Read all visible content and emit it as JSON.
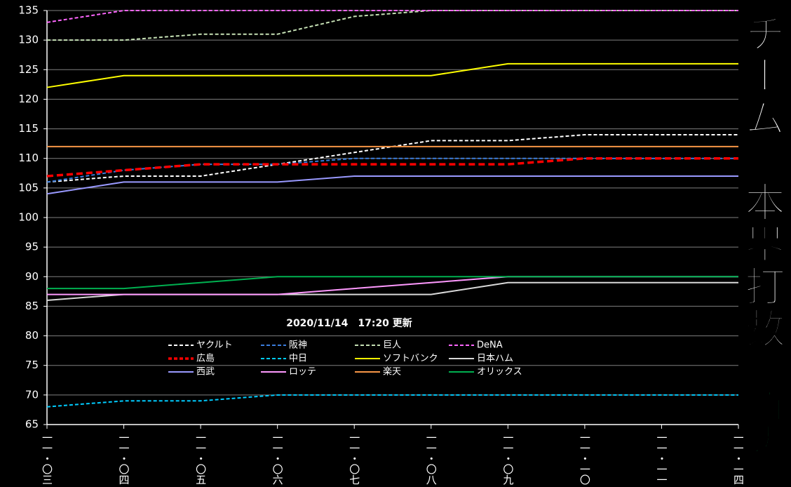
{
  "chart_data": {
    "type": "line",
    "title": "チーム　本塁打数",
    "subtitle": "（直近）",
    "annotation": "2020/11/14　17:20 更新",
    "categories": [
      "一一・〇三",
      "一一・〇四",
      "一一・〇五",
      "一一・〇六",
      "一一・〇七",
      "一一・〇八",
      "一一・〇九",
      "一一・一〇",
      "一一・一一",
      "一一・一四"
    ],
    "ylim": [
      65,
      135
    ],
    "yticks": [
      65,
      70,
      75,
      80,
      85,
      90,
      95,
      100,
      105,
      110,
      115,
      120,
      125,
      130,
      135
    ],
    "grid": true,
    "series": [
      {
        "name": "ヤクルト",
        "color": "#ffffff",
        "style": "dashed",
        "values": [
          106,
          107,
          107,
          109,
          111,
          113,
          113,
          114,
          114,
          114
        ]
      },
      {
        "name": "阪神",
        "color": "#3b7ddd",
        "style": "dashed",
        "values": [
          106,
          108,
          109,
          109,
          110,
          110,
          110,
          110,
          110,
          110
        ]
      },
      {
        "name": "巨人",
        "color": "#c5e0b4",
        "style": "dashed",
        "values": [
          130,
          130,
          131,
          131,
          134,
          135,
          135,
          135,
          135,
          135
        ]
      },
      {
        "name": "DeNA",
        "color": "#ff66ff",
        "style": "dashed",
        "values": [
          133,
          135,
          135,
          135,
          135,
          135,
          135,
          135,
          135,
          135
        ]
      },
      {
        "name": "広島",
        "color": "#ff0000",
        "style": "dashed",
        "values": [
          107,
          108,
          109,
          109,
          109,
          109,
          109,
          110,
          110,
          110
        ]
      },
      {
        "name": "中日",
        "color": "#00ccff",
        "style": "dashed",
        "values": [
          68,
          69,
          69,
          70,
          70,
          70,
          70,
          70,
          70,
          70
        ]
      },
      {
        "name": "ソフトバンク",
        "color": "#ffff00",
        "style": "solid",
        "values": [
          122,
          124,
          124,
          124,
          124,
          124,
          126,
          126,
          126,
          126
        ]
      },
      {
        "name": "日本ハム",
        "color": "#d9d9d9",
        "style": "solid",
        "values": [
          86,
          87,
          87,
          87,
          87,
          87,
          89,
          89,
          89,
          89
        ]
      },
      {
        "name": "西武",
        "color": "#9999ff",
        "style": "solid",
        "values": [
          104,
          106,
          106,
          106,
          107,
          107,
          107,
          107,
          107,
          107
        ]
      },
      {
        "name": "ロッテ",
        "color": "#ff99ff",
        "style": "solid",
        "values": [
          87,
          87,
          87,
          87,
          88,
          89,
          90,
          90,
          90,
          90
        ]
      },
      {
        "name": "楽天",
        "color": "#f79646",
        "style": "solid",
        "values": [
          112,
          112,
          112,
          112,
          112,
          112,
          112,
          112,
          112,
          112
        ]
      },
      {
        "name": "オリックス",
        "color": "#00b050",
        "style": "solid",
        "values": [
          88,
          88,
          89,
          90,
          90,
          90,
          90,
          90,
          90,
          90
        ]
      }
    ]
  }
}
